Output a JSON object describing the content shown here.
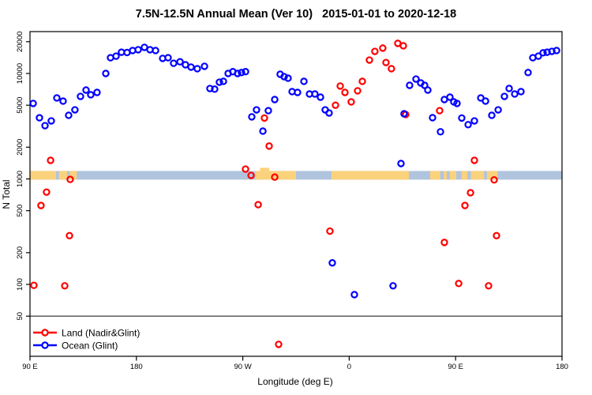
{
  "page": {
    "background": "#FFFFFF"
  },
  "chart_data": {
    "type": "scatter",
    "title": "7.5N-12.5N Annual Mean (Ver 10)   2015-01-01 to 2020-12-18",
    "xlabel": "Longitude (deg E)",
    "ylabel": "N Total",
    "x_axis": {
      "range": [
        90,
        540
      ],
      "ticks": [
        {
          "pos": 90,
          "label": "90 E"
        },
        {
          "pos": 180,
          "label": "180"
        },
        {
          "pos": 270,
          "label": "90 W"
        },
        {
          "pos": 360,
          "label": "0"
        },
        {
          "pos": 450,
          "label": "90 E"
        },
        {
          "pos": 540,
          "label": "180"
        }
      ]
    },
    "y_axis": {
      "scale": "log10",
      "range": [
        21,
        24900
      ],
      "ticks": [
        50,
        100,
        200,
        500,
        1000,
        2000,
        5000,
        10000,
        20000
      ]
    },
    "reference_line_y": 50,
    "reference_line_color": "#4d4d4d",
    "map_band": {
      "value_range": [
        985,
        1190
      ],
      "ocean_color": "#B0C4DE",
      "land_color": "#FBD27C",
      "land_patches_deg": [
        [
          90,
          112
        ],
        [
          114.5,
          121.5
        ],
        [
          123.5,
          129.5
        ],
        [
          280.5,
          315
        ],
        [
          345,
          410.5
        ],
        [
          428.5,
          437
        ],
        [
          440,
          442.5
        ],
        [
          445,
          450.5
        ],
        [
          455,
          460
        ],
        [
          463,
          474
        ],
        [
          476.5,
          485.5
        ]
      ],
      "highland_patch_deg": [
        284.5,
        292.5
      ]
    },
    "legend": {
      "position": "bottom-left"
    },
    "series": [
      {
        "name": "Land (Nadir&Glint)",
        "color": "#FF0000",
        "points": [
          [
            107.4,
            1500
          ],
          [
            124,
            990
          ],
          [
            104,
            750
          ],
          [
            99.3,
            560
          ],
          [
            123.4,
            290
          ],
          [
            93.3,
            98
          ],
          [
            119.4,
            97
          ],
          [
            272.3,
            1240
          ],
          [
            277,
            1080
          ],
          [
            288.3,
            3780
          ],
          [
            292.3,
            2050
          ],
          [
            297,
            1040
          ],
          [
            283,
            570
          ],
          [
            300.3,
            27
          ],
          [
            343.7,
            320
          ],
          [
            348.4,
            5000
          ],
          [
            352.4,
            7600
          ],
          [
            356.4,
            6610
          ],
          [
            361.7,
            5380
          ],
          [
            367.1,
            6850
          ],
          [
            371.1,
            8420
          ],
          [
            377.1,
            13400
          ],
          [
            381.7,
            16200
          ],
          [
            388.4,
            17400
          ],
          [
            391.1,
            12700
          ],
          [
            395.7,
            11100
          ],
          [
            401.1,
            19300
          ],
          [
            405.8,
            18300
          ],
          [
            407.8,
            4080
          ],
          [
            436.5,
            4440
          ],
          [
            440.5,
            250
          ],
          [
            465.9,
            1500
          ],
          [
            482.6,
            980
          ],
          [
            462.6,
            740
          ],
          [
            457.9,
            560
          ],
          [
            484.6,
            290
          ],
          [
            452.6,
            102
          ],
          [
            477.9,
            97
          ]
        ]
      },
      {
        "name": "Ocean (Glint)",
        "color": "#0000FF",
        "points": [
          [
            92.7,
            5200
          ],
          [
            98,
            3800
          ],
          [
            102.7,
            3200
          ],
          [
            108,
            3550
          ],
          [
            112.7,
            5860
          ],
          [
            118,
            5470
          ],
          [
            122.7,
            4010
          ],
          [
            128,
            4520
          ],
          [
            132.7,
            6060
          ],
          [
            137.4,
            6960
          ],
          [
            141.4,
            6280
          ],
          [
            146.7,
            6610
          ],
          [
            154.1,
            10000
          ],
          [
            158.1,
            14100
          ],
          [
            162.8,
            14600
          ],
          [
            167.4,
            15900
          ],
          [
            172.1,
            15800
          ],
          [
            176.8,
            16500
          ],
          [
            181.5,
            16800
          ],
          [
            186.8,
            17700
          ],
          [
            191.5,
            16800
          ],
          [
            196.2,
            16500
          ],
          [
            202.2,
            13900
          ],
          [
            206.8,
            14100
          ],
          [
            211.5,
            12500
          ],
          [
            216.9,
            12900
          ],
          [
            221.5,
            12100
          ],
          [
            226.2,
            11500
          ],
          [
            231.5,
            11100
          ],
          [
            237.6,
            11700
          ],
          [
            242.2,
            7200
          ],
          [
            246.2,
            7100
          ],
          [
            250.2,
            8270
          ],
          [
            253.6,
            8420
          ],
          [
            257.6,
            10000
          ],
          [
            261.6,
            10400
          ],
          [
            265.6,
            10000
          ],
          [
            268.9,
            10200
          ],
          [
            272.3,
            10400
          ],
          [
            277.6,
            3880
          ],
          [
            281.6,
            4520
          ],
          [
            287,
            2840
          ],
          [
            291.6,
            4440
          ],
          [
            297,
            5660
          ],
          [
            301.6,
            9830
          ],
          [
            305,
            9330
          ],
          [
            308.3,
            9020
          ],
          [
            311.7,
            6730
          ],
          [
            316.3,
            6610
          ],
          [
            321.7,
            8420
          ],
          [
            326.4,
            6390
          ],
          [
            331,
            6390
          ],
          [
            335.7,
            5960
          ],
          [
            339.7,
            4520
          ],
          [
            343,
            4220
          ],
          [
            345.7,
            160
          ],
          [
            364.4,
            80
          ],
          [
            397.1,
            97
          ],
          [
            403.8,
            1400
          ],
          [
            406.4,
            4150
          ],
          [
            411.1,
            7720
          ],
          [
            416.5,
            8860
          ],
          [
            420.5,
            8130
          ],
          [
            423.8,
            7720
          ],
          [
            426.5,
            6960
          ],
          [
            430.5,
            3810
          ],
          [
            437.2,
            2800
          ],
          [
            440.5,
            5660
          ],
          [
            445.2,
            5960
          ],
          [
            448.5,
            5380
          ],
          [
            451.2,
            5200
          ],
          [
            455.2,
            3780
          ],
          [
            460.6,
            3270
          ],
          [
            465.9,
            3550
          ],
          [
            471.3,
            5860
          ],
          [
            475.3,
            5470
          ],
          [
            480.6,
            4010
          ],
          [
            486,
            4520
          ],
          [
            491.3,
            6060
          ],
          [
            495.3,
            7210
          ],
          [
            500,
            6390
          ],
          [
            505.3,
            6730
          ],
          [
            511.3,
            10200
          ],
          [
            515.3,
            14100
          ],
          [
            520,
            14600
          ],
          [
            524,
            15700
          ],
          [
            527.4,
            15900
          ],
          [
            531.4,
            16200
          ],
          [
            535.4,
            16500
          ]
        ]
      }
    ]
  }
}
